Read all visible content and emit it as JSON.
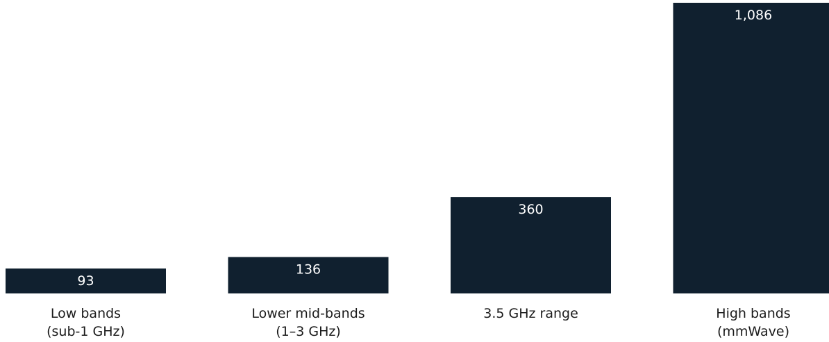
{
  "chart_data": {
    "type": "bar",
    "title": "",
    "xlabel": "",
    "ylabel": "",
    "categories": [
      [
        "Low bands",
        "(sub-1 GHz)"
      ],
      [
        "Lower mid-bands",
        "(1–3 GHz)"
      ],
      [
        "3.5 GHz range"
      ],
      [
        "High bands",
        "(mmWave)"
      ]
    ],
    "values": [
      93,
      136,
      360,
      1086
    ],
    "value_labels": [
      "93",
      "136",
      "360",
      "1,086"
    ],
    "ylim": [
      0,
      1086
    ],
    "grid": false,
    "legend": "none",
    "bar_color": "#10202f",
    "label_color": "#ffffff",
    "text_color": "#1a1a1a"
  }
}
